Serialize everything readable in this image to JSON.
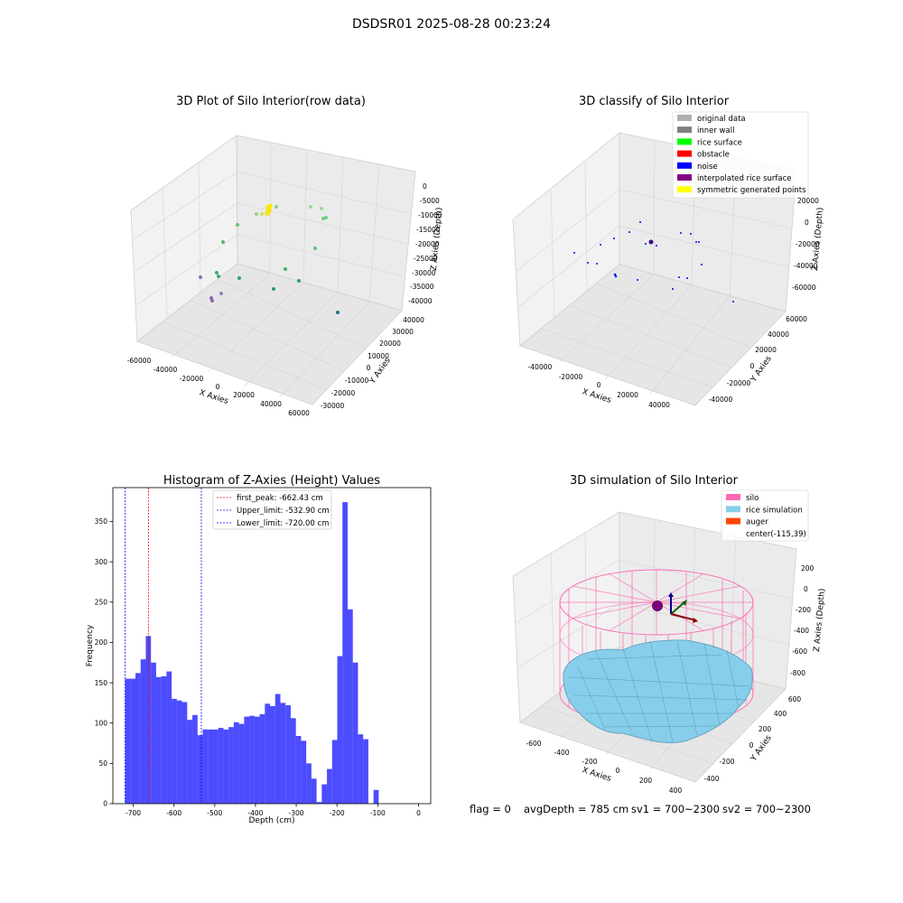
{
  "figure": {
    "suptitle": "DSDSR01 2025-08-28 00:23:24"
  },
  "panel_raw": {
    "title": "3D Plot of Silo Interior(row data)",
    "x_label": "X Axies",
    "y_label": "Y Axies",
    "z_label": "Z Axies (Depth)",
    "x_ticks": [
      "-60000",
      "-40000",
      "-20000",
      "0",
      "20000",
      "40000",
      "60000"
    ],
    "y_ticks": [
      "-30000",
      "-20000",
      "-10000",
      "0",
      "10000",
      "20000",
      "30000",
      "40000"
    ],
    "z_ticks": [
      "0",
      "-5000",
      "-10000",
      "-15000",
      "-20000",
      "-25000",
      "-30000",
      "-35000",
      "-40000"
    ]
  },
  "panel_classify": {
    "title": "3D classify of Silo Interior",
    "x_label": "X Axies",
    "y_label": "Y Axies",
    "z_label": "Z Axies (Depth)",
    "x_ticks": [
      "-40000",
      "-20000",
      "0",
      "20000",
      "40000"
    ],
    "y_ticks": [
      "-40000",
      "-20000",
      "0",
      "20000",
      "40000",
      "60000"
    ],
    "z_ticks": [
      "20000",
      "0",
      "-20000",
      "-40000",
      "-60000"
    ],
    "legend": [
      {
        "label": "original data",
        "color": "#b0b0b0"
      },
      {
        "label": "inner wall",
        "color": "#808080"
      },
      {
        "label": "rice surface",
        "color": "#00ff00"
      },
      {
        "label": "obstacle",
        "color": "#ff0000"
      },
      {
        "label": "noise",
        "color": "#0000ff"
      },
      {
        "label": "interpolated rice surface",
        "color": "#800080"
      },
      {
        "label": "symmetric generated points",
        "color": "#ffff00"
      }
    ]
  },
  "panel_sim": {
    "title": "3D simulation of Silo Interior",
    "x_label": "X Axies",
    "y_label": "Y Axies",
    "z_label": "Z Axies (Depth)",
    "x_ticks": [
      "-600",
      "-400",
      "-200",
      "0",
      "200",
      "400"
    ],
    "y_ticks": [
      "-400",
      "-200",
      "0",
      "200",
      "400",
      "600"
    ],
    "z_ticks": [
      "200",
      "0",
      "-200",
      "-400",
      "-600",
      "-800"
    ],
    "legend": [
      {
        "label": "silo",
        "color": "#ff69b4"
      },
      {
        "label": "rice simulation",
        "color": "#87ceeb"
      },
      {
        "label": "auger",
        "color": "#ff4500"
      },
      {
        "label": "center(-115,39)",
        "color": ""
      }
    ]
  },
  "footer": {
    "flag": "flag = 0",
    "avg": "avgDepth = 785 cm",
    "sv1": "sv1 = 700~2300",
    "sv2": "sv2 = 700~2300"
  },
  "chart_data": {
    "type": "bar",
    "title": "Histogram of Z-Axies (Height) Values",
    "xlabel": "Depth (cm)",
    "ylabel": "Frequency",
    "xlim": [
      -750,
      30
    ],
    "ylim": [
      0,
      392
    ],
    "x_ticks": [
      -700,
      -600,
      -500,
      -400,
      -300,
      -200,
      -100,
      0
    ],
    "y_ticks": [
      0,
      50,
      100,
      150,
      200,
      250,
      300,
      350
    ],
    "bin_start": -720,
    "bin_width": 12.7,
    "values": [
      155,
      155,
      162,
      179,
      208,
      175,
      157,
      158,
      164,
      130,
      128,
      126,
      104,
      110,
      85,
      92,
      92,
      92,
      94,
      92,
      95,
      101,
      99,
      108,
      109,
      108,
      111,
      124,
      121,
      136,
      125,
      122,
      106,
      84,
      78,
      50,
      31,
      2,
      24,
      43,
      79,
      183,
      374,
      241,
      175,
      86,
      80,
      0,
      17
    ],
    "bar_color": "#0000ff",
    "bar_alpha": 0.7,
    "vlines": [
      {
        "label": "first_peak: -662.43 cm",
        "x": -662.43,
        "color": "#ff0000"
      },
      {
        "label": "Upper_limit: -532.90 cm",
        "x": -532.9,
        "color": "#0000ff"
      },
      {
        "label": "Lower_limit: -720.00 cm",
        "x": -720.0,
        "color": "#0000ff"
      }
    ]
  }
}
